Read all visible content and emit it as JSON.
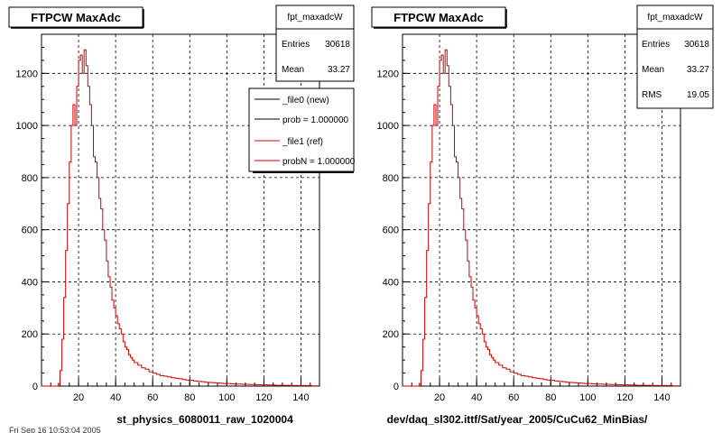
{
  "footer_left": "Fri Sep 16 10:53:04 2005",
  "chart_data": [
    {
      "type": "line",
      "step": true,
      "title": "FTPCW MaxAdc",
      "xlabel": "st_physics_6080011_raw_1020004",
      "ylabel": "",
      "xlim": [
        0,
        150
      ],
      "ylim": [
        0,
        1350
      ],
      "x_ticks": [
        "20",
        "40",
        "60",
        "80",
        "100",
        "120",
        "140"
      ],
      "y_ticks": [
        "0",
        "200",
        "400",
        "600",
        "800",
        "1000",
        "1200"
      ],
      "grid": true,
      "legend_position": "top-right",
      "stats": {
        "name": "fpt_maxadcW",
        "rows": [
          {
            "label": "Entries",
            "value": "30618"
          },
          {
            "label": "Mean",
            "value": "33.27"
          }
        ]
      },
      "legend": [
        {
          "label": "_file0 (new)",
          "color": "#000000"
        },
        {
          "label": "prob = 1.000000",
          "color": "#000000"
        },
        {
          "label": "_file1 (ref)",
          "color": "#cc0000"
        },
        {
          "label": "probN = 1.000000",
          "color": "#cc0000"
        }
      ],
      "series": [
        {
          "color": "#cc0000",
          "x": [
            0,
            1,
            2,
            3,
            4,
            5,
            6,
            7,
            8,
            9,
            10,
            11,
            12,
            13,
            14,
            15,
            16,
            17,
            18,
            19,
            20,
            21,
            22,
            23,
            24,
            25,
            26,
            27,
            28,
            29,
            30,
            31,
            32,
            33,
            34,
            35,
            36,
            37,
            38,
            39,
            40,
            41,
            42,
            43,
            44,
            45,
            46,
            47,
            48,
            49,
            50,
            52,
            54,
            56,
            58,
            60,
            62,
            64,
            66,
            68,
            70,
            72,
            74,
            76,
            78,
            80,
            82,
            84,
            86,
            88,
            90,
            92,
            94,
            96,
            98,
            100,
            102,
            104,
            106,
            108,
            110,
            112,
            114,
            116,
            118,
            120,
            122,
            124,
            126,
            128,
            130,
            132,
            134,
            136,
            138,
            140,
            142,
            144,
            146,
            148,
            150
          ],
          "y": [
            0,
            0,
            0,
            0,
            0,
            0,
            0,
            0,
            0,
            10,
            60,
            180,
            340,
            520,
            700,
            860,
            1000,
            1080,
            1000,
            1150,
            1250,
            1270,
            1200,
            1290,
            1230,
            1150,
            1080,
            1000,
            880,
            860,
            800,
            720,
            680,
            600,
            560,
            480,
            420,
            380,
            330,
            300,
            270,
            240,
            220,
            200,
            170,
            150,
            140,
            120,
            110,
            100,
            90,
            80,
            70,
            65,
            55,
            50,
            45,
            40,
            38,
            35,
            32,
            30,
            28,
            25,
            23,
            22,
            20,
            18,
            17,
            15,
            14,
            13,
            12,
            11,
            10,
            10,
            9,
            8,
            8,
            7,
            7,
            6,
            6,
            5,
            5,
            5,
            4,
            4,
            3,
            3,
            3,
            3,
            2,
            2,
            2,
            2,
            2,
            2,
            1,
            1,
            1
          ]
        }
      ]
    },
    {
      "type": "line",
      "step": true,
      "title": "FTPCW MaxAdc",
      "xlabel": "dev/daq_sl302.ittf/Sat/year_2005/CuCu62_MinBias/",
      "ylabel": "",
      "xlim": [
        0,
        150
      ],
      "ylim": [
        0,
        1350
      ],
      "x_ticks": [
        "20",
        "40",
        "60",
        "80",
        "100",
        "120",
        "140"
      ],
      "y_ticks": [
        "0",
        "200",
        "400",
        "600",
        "800",
        "1000",
        "1200"
      ],
      "grid": true,
      "stats": {
        "name": "fpt_maxadcW",
        "rows": [
          {
            "label": "Entries",
            "value": "30618"
          },
          {
            "label": "Mean",
            "value": "33.27"
          },
          {
            "label": "RMS",
            "value": "19.05"
          }
        ]
      },
      "series": [
        {
          "color": "#cc0000",
          "x": [
            0,
            1,
            2,
            3,
            4,
            5,
            6,
            7,
            8,
            9,
            10,
            11,
            12,
            13,
            14,
            15,
            16,
            17,
            18,
            19,
            20,
            21,
            22,
            23,
            24,
            25,
            26,
            27,
            28,
            29,
            30,
            31,
            32,
            33,
            34,
            35,
            36,
            37,
            38,
            39,
            40,
            41,
            42,
            43,
            44,
            45,
            46,
            47,
            48,
            49,
            50,
            52,
            54,
            56,
            58,
            60,
            62,
            64,
            66,
            68,
            70,
            72,
            74,
            76,
            78,
            80,
            82,
            84,
            86,
            88,
            90,
            92,
            94,
            96,
            98,
            100,
            102,
            104,
            106,
            108,
            110,
            112,
            114,
            116,
            118,
            120,
            122,
            124,
            126,
            128,
            130,
            132,
            134,
            136,
            138,
            140,
            142,
            144,
            146,
            148,
            150
          ],
          "y": [
            0,
            0,
            0,
            0,
            0,
            0,
            0,
            0,
            0,
            10,
            60,
            180,
            340,
            520,
            700,
            860,
            1000,
            1080,
            1000,
            1150,
            1250,
            1270,
            1200,
            1290,
            1230,
            1150,
            1080,
            1000,
            880,
            860,
            800,
            720,
            680,
            600,
            560,
            480,
            420,
            380,
            330,
            300,
            270,
            240,
            220,
            200,
            170,
            150,
            140,
            120,
            110,
            100,
            90,
            80,
            70,
            65,
            55,
            50,
            45,
            40,
            38,
            35,
            32,
            30,
            28,
            25,
            23,
            22,
            20,
            18,
            17,
            15,
            14,
            13,
            12,
            11,
            10,
            10,
            9,
            8,
            8,
            7,
            7,
            6,
            6,
            5,
            5,
            5,
            4,
            4,
            3,
            3,
            3,
            3,
            2,
            2,
            2,
            2,
            2,
            2,
            1,
            1,
            1
          ]
        }
      ]
    }
  ]
}
